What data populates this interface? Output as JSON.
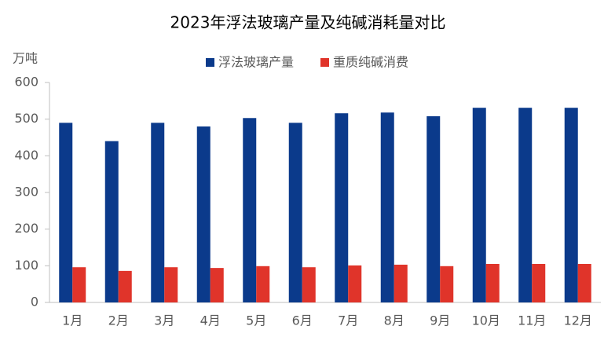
{
  "chart_data": {
    "type": "bar",
    "title": "2023年浮法玻璃产量及纯碱消耗量对比",
    "y_label": "万吨",
    "categories": [
      "1月",
      "2月",
      "3月",
      "4月",
      "5月",
      "6月",
      "7月",
      "8月",
      "9月",
      "10月",
      "11月",
      "12月"
    ],
    "series": [
      {
        "name": "浮法玻璃产量",
        "color": "#0b3a8b",
        "values": [
          490,
          440,
          490,
          480,
          503,
          490,
          516,
          518,
          508,
          531,
          531,
          531
        ]
      },
      {
        "name": "重质纯碱消费",
        "color": "#e0342a",
        "values": [
          96,
          86,
          96,
          94,
          99,
          96,
          101,
          103,
          99,
          105,
          105,
          105
        ]
      }
    ],
    "ylim": [
      0,
      600
    ],
    "yticks": [
      0,
      100,
      200,
      300,
      400,
      500,
      600
    ],
    "grid": false,
    "legend": "top"
  }
}
